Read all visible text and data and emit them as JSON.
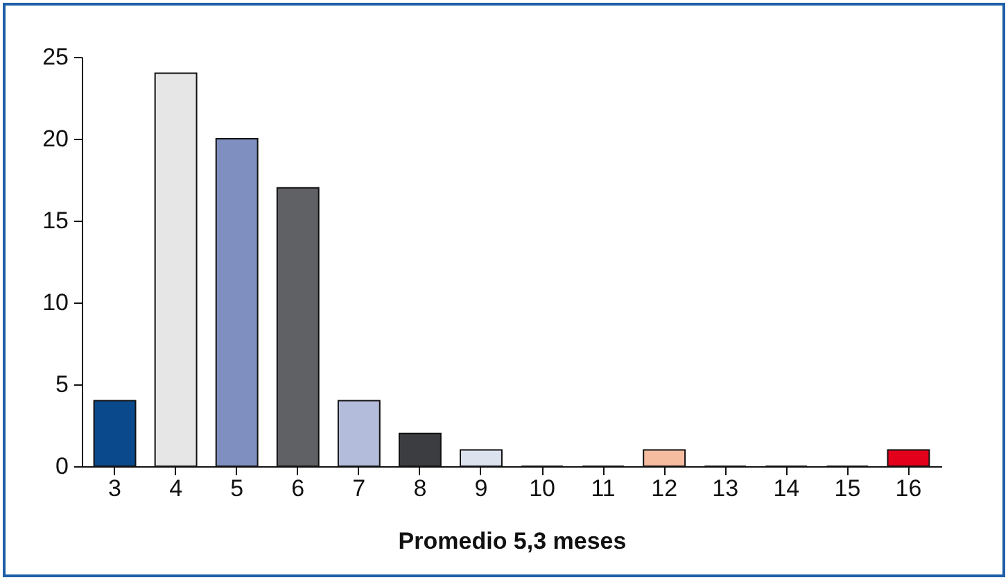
{
  "chart_data": {
    "type": "bar",
    "xlabel": "Promedio 5,3 meses",
    "categories": [
      "3",
      "4",
      "5",
      "6",
      "7",
      "8",
      "9",
      "10",
      "11",
      "12",
      "13",
      "14",
      "15",
      "16"
    ],
    "values": [
      4,
      24,
      20,
      17,
      4,
      2,
      1,
      0,
      0,
      1,
      0,
      0,
      0,
      1
    ],
    "colors": [
      "#0a4a8c",
      "#e6e6e6",
      "#7f8fbf",
      "#606164",
      "#b4bcdc",
      "#3c3d40",
      "#dde2ef",
      "#cccccc",
      "#cccccc",
      "#f5bca0",
      "#cccccc",
      "#cccccc",
      "#cccccc",
      "#e2001a"
    ],
    "ylim": [
      0,
      25
    ],
    "yticks": [
      0,
      5,
      10,
      15,
      20,
      25
    ],
    "grid": false,
    "legend": false
  }
}
